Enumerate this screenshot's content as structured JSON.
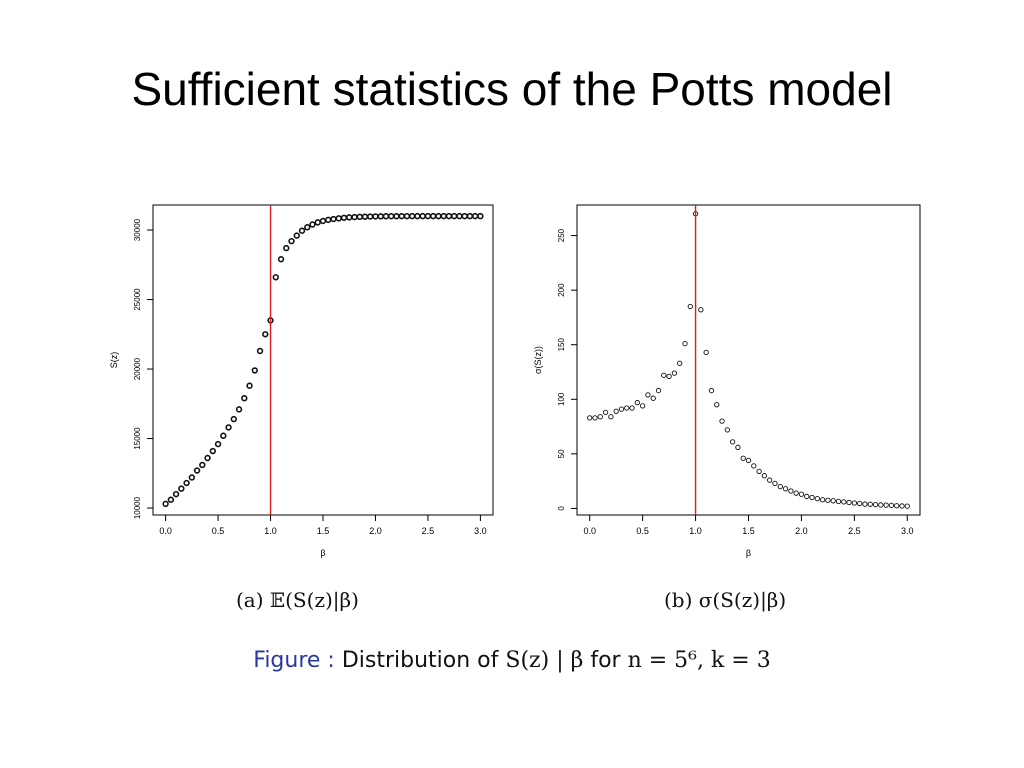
{
  "slide": {
    "title": "Sufficient statistics of the Potts model"
  },
  "captions": {
    "a": "(a) 𝔼(S(z)|β)",
    "b": "(b) σ(S(z)|β)"
  },
  "figure_caption": {
    "label": "Figure :",
    "text_1": " Distribution of ",
    "math_1": "S(z) | β",
    "text_2": " for ",
    "math_2": "n = 5⁶, k = 3"
  },
  "chart_data": [
    {
      "type": "scatter",
      "xlabel": "β",
      "ylabel": "S(z)",
      "xlim": [
        -0.12,
        3.12
      ],
      "ylim": [
        9500,
        31800
      ],
      "x_ticks": [
        0.0,
        0.5,
        1.0,
        1.5,
        2.0,
        2.5,
        3.0
      ],
      "x_tick_labels": [
        "0.0",
        "0.5",
        "1.0",
        "1.5",
        "2.0",
        "2.5",
        "3.0"
      ],
      "y_ticks": [
        10000,
        15000,
        20000,
        25000,
        30000
      ],
      "y_tick_labels": [
        "10000",
        "15000",
        "20000",
        "25000",
        "30000"
      ],
      "vline": 1.0,
      "vline_color": "#d62020",
      "grid": false,
      "points": [
        [
          0.0,
          10300
        ],
        [
          0.05,
          10600
        ],
        [
          0.1,
          11000
        ],
        [
          0.15,
          11400
        ],
        [
          0.2,
          11800
        ],
        [
          0.25,
          12200
        ],
        [
          0.3,
          12700
        ],
        [
          0.35,
          13100
        ],
        [
          0.4,
          13600
        ],
        [
          0.45,
          14100
        ],
        [
          0.5,
          14600
        ],
        [
          0.55,
          15200
        ],
        [
          0.6,
          15800
        ],
        [
          0.65,
          16400
        ],
        [
          0.7,
          17100
        ],
        [
          0.75,
          17900
        ],
        [
          0.8,
          18800
        ],
        [
          0.85,
          19900
        ],
        [
          0.9,
          21300
        ],
        [
          0.95,
          22500
        ],
        [
          1.0,
          23500
        ],
        [
          1.05,
          26600
        ],
        [
          1.1,
          27900
        ],
        [
          1.15,
          28700
        ],
        [
          1.2,
          29200
        ],
        [
          1.25,
          29600
        ],
        [
          1.3,
          29950
        ],
        [
          1.35,
          30200
        ],
        [
          1.4,
          30400
        ],
        [
          1.45,
          30550
        ],
        [
          1.5,
          30650
        ],
        [
          1.55,
          30730
        ],
        [
          1.6,
          30790
        ],
        [
          1.65,
          30840
        ],
        [
          1.7,
          30880
        ],
        [
          1.75,
          30910
        ],
        [
          1.8,
          30930
        ],
        [
          1.85,
          30950
        ],
        [
          1.9,
          30960
        ],
        [
          1.95,
          30970
        ],
        [
          2.0,
          30980
        ],
        [
          2.05,
          30985
        ],
        [
          2.1,
          30990
        ],
        [
          2.15,
          30993
        ],
        [
          2.2,
          30995
        ],
        [
          2.25,
          30997
        ],
        [
          2.3,
          30998
        ],
        [
          2.35,
          30999
        ],
        [
          2.4,
          31000
        ],
        [
          2.45,
          31000
        ],
        [
          2.5,
          31000
        ],
        [
          2.55,
          31000
        ],
        [
          2.6,
          31000
        ],
        [
          2.65,
          31000
        ],
        [
          2.7,
          31000
        ],
        [
          2.75,
          31000
        ],
        [
          2.8,
          31000
        ],
        [
          2.85,
          31000
        ],
        [
          2.9,
          31000
        ],
        [
          2.95,
          31000
        ],
        [
          3.0,
          31000
        ]
      ]
    },
    {
      "type": "scatter",
      "xlabel": "β",
      "ylabel": "σ(S(z))",
      "xlim": [
        -0.12,
        3.12
      ],
      "ylim": [
        -6,
        278
      ],
      "x_ticks": [
        0.0,
        0.5,
        1.0,
        1.5,
        2.0,
        2.5,
        3.0
      ],
      "x_tick_labels": [
        "0.0",
        "0.5",
        "1.0",
        "1.5",
        "2.0",
        "2.5",
        "3.0"
      ],
      "y_ticks": [
        0,
        50,
        100,
        150,
        200,
        250
      ],
      "y_tick_labels": [
        "0",
        "50",
        "100",
        "150",
        "200",
        "250"
      ],
      "vline": 1.0,
      "vline_color": "#d62020",
      "grid": false,
      "points": [
        [
          0.0,
          83
        ],
        [
          0.05,
          83
        ],
        [
          0.1,
          84
        ],
        [
          0.15,
          88
        ],
        [
          0.2,
          84
        ],
        [
          0.25,
          89
        ],
        [
          0.3,
          91
        ],
        [
          0.35,
          92
        ],
        [
          0.4,
          92
        ],
        [
          0.45,
          97
        ],
        [
          0.5,
          94
        ],
        [
          0.55,
          104
        ],
        [
          0.6,
          101
        ],
        [
          0.65,
          108
        ],
        [
          0.7,
          122
        ],
        [
          0.75,
          121
        ],
        [
          0.8,
          124
        ],
        [
          0.85,
          133
        ],
        [
          0.9,
          151
        ],
        [
          0.95,
          185
        ],
        [
          1.0,
          270
        ],
        [
          1.05,
          182
        ],
        [
          1.1,
          143
        ],
        [
          1.15,
          108
        ],
        [
          1.2,
          95
        ],
        [
          1.25,
          80
        ],
        [
          1.3,
          72
        ],
        [
          1.35,
          61
        ],
        [
          1.4,
          56
        ],
        [
          1.45,
          46
        ],
        [
          1.5,
          44
        ],
        [
          1.55,
          39
        ],
        [
          1.6,
          34
        ],
        [
          1.65,
          30
        ],
        [
          1.7,
          26
        ],
        [
          1.75,
          23
        ],
        [
          1.8,
          20
        ],
        [
          1.85,
          18
        ],
        [
          1.9,
          16
        ],
        [
          1.95,
          14
        ],
        [
          2.0,
          13
        ],
        [
          2.05,
          11
        ],
        [
          2.1,
          10
        ],
        [
          2.15,
          9
        ],
        [
          2.2,
          8
        ],
        [
          2.25,
          7.5
        ],
        [
          2.3,
          7
        ],
        [
          2.35,
          6.5
        ],
        [
          2.4,
          6
        ],
        [
          2.45,
          5.5
        ],
        [
          2.5,
          5
        ],
        [
          2.55,
          4.5
        ],
        [
          2.6,
          4
        ],
        [
          2.65,
          3.8
        ],
        [
          2.7,
          3.5
        ],
        [
          2.75,
          3.2
        ],
        [
          2.8,
          3
        ],
        [
          2.85,
          2.8
        ],
        [
          2.9,
          2.5
        ],
        [
          2.95,
          2.3
        ],
        [
          3.0,
          2.1
        ]
      ]
    }
  ]
}
